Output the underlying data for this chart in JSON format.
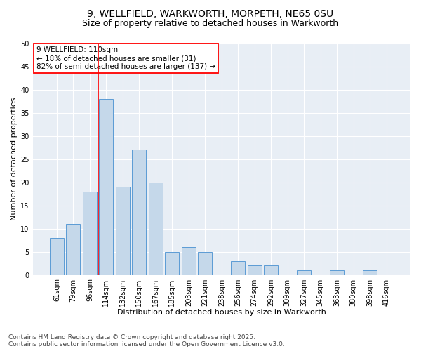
{
  "title1": "9, WELLFIELD, WARKWORTH, MORPETH, NE65 0SU",
  "title2": "Size of property relative to detached houses in Warkworth",
  "xlabel": "Distribution of detached houses by size in Warkworth",
  "ylabel": "Number of detached properties",
  "categories": [
    "61sqm",
    "79sqm",
    "96sqm",
    "114sqm",
    "132sqm",
    "150sqm",
    "167sqm",
    "185sqm",
    "203sqm",
    "221sqm",
    "238sqm",
    "256sqm",
    "274sqm",
    "292sqm",
    "309sqm",
    "327sqm",
    "345sqm",
    "363sqm",
    "380sqm",
    "398sqm",
    "416sqm"
  ],
  "values": [
    8,
    11,
    18,
    38,
    19,
    27,
    20,
    5,
    6,
    5,
    0,
    3,
    2,
    2,
    0,
    1,
    0,
    1,
    0,
    1,
    0
  ],
  "bar_color": "#c5d8ea",
  "bar_edge_color": "#5b9bd5",
  "vline_color": "red",
  "vline_index": 3,
  "annotation_text": "9 WELLFIELD: 110sqm\n← 18% of detached houses are smaller (31)\n82% of semi-detached houses are larger (137) →",
  "annotation_box_color": "white",
  "annotation_box_edge": "red",
  "ylim": [
    0,
    50
  ],
  "yticks": [
    0,
    5,
    10,
    15,
    20,
    25,
    30,
    35,
    40,
    45,
    50
  ],
  "fig_bg_color": "#ffffff",
  "plot_bg_color": "#e8eef5",
  "grid_color": "#ffffff",
  "footer": "Contains HM Land Registry data © Crown copyright and database right 2025.\nContains public sector information licensed under the Open Government Licence v3.0.",
  "title1_fontsize": 10,
  "title2_fontsize": 9,
  "xlabel_fontsize": 8,
  "ylabel_fontsize": 8,
  "tick_fontsize": 7,
  "annotation_fontsize": 7.5,
  "footer_fontsize": 6.5
}
